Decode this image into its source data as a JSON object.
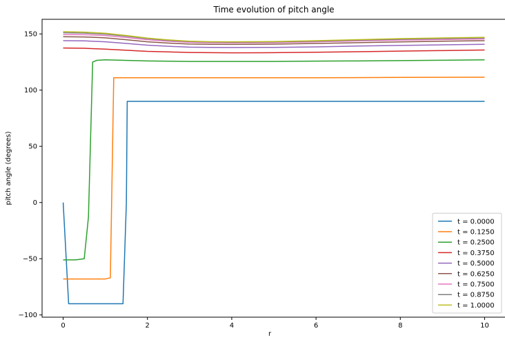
{
  "chart_data": {
    "type": "line",
    "title": "Time evolution of pitch angle",
    "xlabel": "r",
    "ylabel": "pitch angle (degrees)",
    "xlim": [
      -0.5,
      10.5
    ],
    "ylim": [
      -102,
      163
    ],
    "xticks": [
      0,
      2,
      4,
      6,
      8,
      10
    ],
    "yticks": [
      -100,
      -50,
      0,
      50,
      100,
      150
    ],
    "grid": false,
    "legend_position": "lower-right",
    "series": [
      {
        "name": "t = 0.0000",
        "color": "#1f77b4",
        "x": [
          0,
          0.13,
          1.42,
          1.5,
          1.52,
          10
        ],
        "y": [
          0,
          -90,
          -90,
          0,
          90,
          90
        ]
      },
      {
        "name": "t = 0.1250",
        "color": "#ff7f0e",
        "x": [
          0,
          0.9,
          1.0,
          1.12,
          1.2,
          2,
          4,
          6,
          8,
          10
        ],
        "y": [
          -68,
          -68,
          -68,
          -67,
          111,
          111,
          111,
          111,
          111.3,
          111.5
        ]
      },
      {
        "name": "t = 0.2500",
        "color": "#2ca02c",
        "x": [
          0,
          0.3,
          0.5,
          0.6,
          0.7,
          0.8,
          1.0,
          2,
          3,
          4,
          5,
          6,
          7,
          8,
          9,
          10
        ],
        "y": [
          -51,
          -51,
          -50,
          -13,
          125,
          126.5,
          127,
          126,
          125.5,
          125.5,
          125.5,
          125.8,
          126,
          126.3,
          126.6,
          127
        ]
      },
      {
        "name": "t = 0.3750",
        "color": "#d62728",
        "x": [
          0,
          0.5,
          1,
          1.5,
          2,
          2.5,
          3,
          3.5,
          4,
          5,
          6,
          7,
          8,
          9,
          10
        ],
        "y": [
          137.5,
          137.2,
          136.5,
          135.5,
          134.5,
          134,
          133.5,
          133.3,
          133.2,
          133.3,
          133.7,
          134.2,
          134.7,
          135.2,
          135.7
        ]
      },
      {
        "name": "t = 0.5000",
        "color": "#9467bd",
        "x": [
          0,
          0.5,
          1,
          1.5,
          2,
          2.5,
          3,
          3.5,
          4,
          5,
          6,
          7,
          8,
          9,
          10
        ],
        "y": [
          144,
          143.8,
          143,
          141.5,
          140,
          139,
          138.2,
          138,
          137.9,
          138,
          138.5,
          139.2,
          139.8,
          140.3,
          140.8
        ]
      },
      {
        "name": "t = 0.6250",
        "color": "#8c564b",
        "x": [
          0,
          0.5,
          1,
          1.5,
          2,
          2.5,
          3,
          3.5,
          4,
          5,
          6,
          7,
          8,
          9,
          10
        ],
        "y": [
          147.5,
          147.3,
          146.5,
          144.8,
          143,
          141.8,
          141,
          140.8,
          140.7,
          140.9,
          141.5,
          142.2,
          142.9,
          143.5,
          144
        ]
      },
      {
        "name": "t = 0.7500",
        "color": "#e377c2",
        "x": [
          0,
          0.5,
          1,
          1.5,
          2,
          2.5,
          3,
          3.5,
          4,
          5,
          6,
          7,
          8,
          9,
          10
        ],
        "y": [
          149.5,
          149.3,
          148.5,
          146.8,
          144.8,
          143.5,
          142.5,
          142.2,
          142.1,
          142.3,
          143,
          143.8,
          144.5,
          145,
          145.5
        ]
      },
      {
        "name": "t = 0.8750",
        "color": "#7f7f7f",
        "x": [
          0,
          0.5,
          1,
          1.5,
          2,
          2.5,
          3,
          3.5,
          4,
          5,
          6,
          7,
          8,
          9,
          10
        ],
        "y": [
          151,
          150.7,
          149.8,
          148,
          145.8,
          144.3,
          143.2,
          142.8,
          142.7,
          142.9,
          143.6,
          144.5,
          145.3,
          145.9,
          146.4
        ]
      },
      {
        "name": "t = 1.0000",
        "color": "#bcbd22",
        "x": [
          0,
          0.5,
          1,
          1.5,
          2,
          2.5,
          3,
          3.5,
          4,
          5,
          6,
          7,
          8,
          9,
          10
        ],
        "y": [
          152,
          151.6,
          150.6,
          148.6,
          146.3,
          144.7,
          143.5,
          143.1,
          143,
          143.2,
          144,
          144.9,
          145.8,
          146.4,
          147
        ]
      }
    ]
  }
}
